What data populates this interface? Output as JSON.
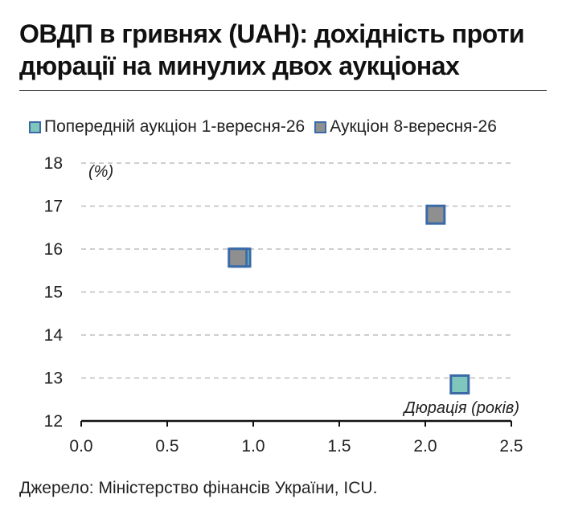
{
  "page": {
    "title": "ОВДП в гривнях (UAH): дохідність проти дюрації на минулих двох аукціонах",
    "source": "Джерело: Міністерство фінансів України, ICU."
  },
  "chart_data": {
    "type": "scatter",
    "title": "ОВДП в гривнях (UAH): дохідність проти дюрації на минулих двох аукціонах",
    "xlabel": "Дюрація (років)",
    "ylabel": "(%)",
    "xlim": [
      0,
      2.5
    ],
    "ylim": [
      12,
      18
    ],
    "x_ticks": [
      "0.0",
      "0.5",
      "1.0",
      "1.5",
      "2.0",
      "2.5"
    ],
    "y_ticks": [
      "12",
      "13",
      "14",
      "15",
      "16",
      "17",
      "18"
    ],
    "grid": "horizontal-dashed",
    "legend_position": "top",
    "series": [
      {
        "name": "Попередній аукціон 1-вересня-26",
        "color": "#7fc6bd",
        "border": "#3a6aa8",
        "points": [
          {
            "x": 0.93,
            "y": 15.8
          },
          {
            "x": 2.2,
            "y": 12.85
          }
        ]
      },
      {
        "name": "Аукціон 8-вересня-26",
        "color": "#8f8f8f",
        "border": "#3a6aa8",
        "points": [
          {
            "x": 0.91,
            "y": 15.8
          },
          {
            "x": 2.06,
            "y": 16.8
          }
        ]
      }
    ]
  }
}
